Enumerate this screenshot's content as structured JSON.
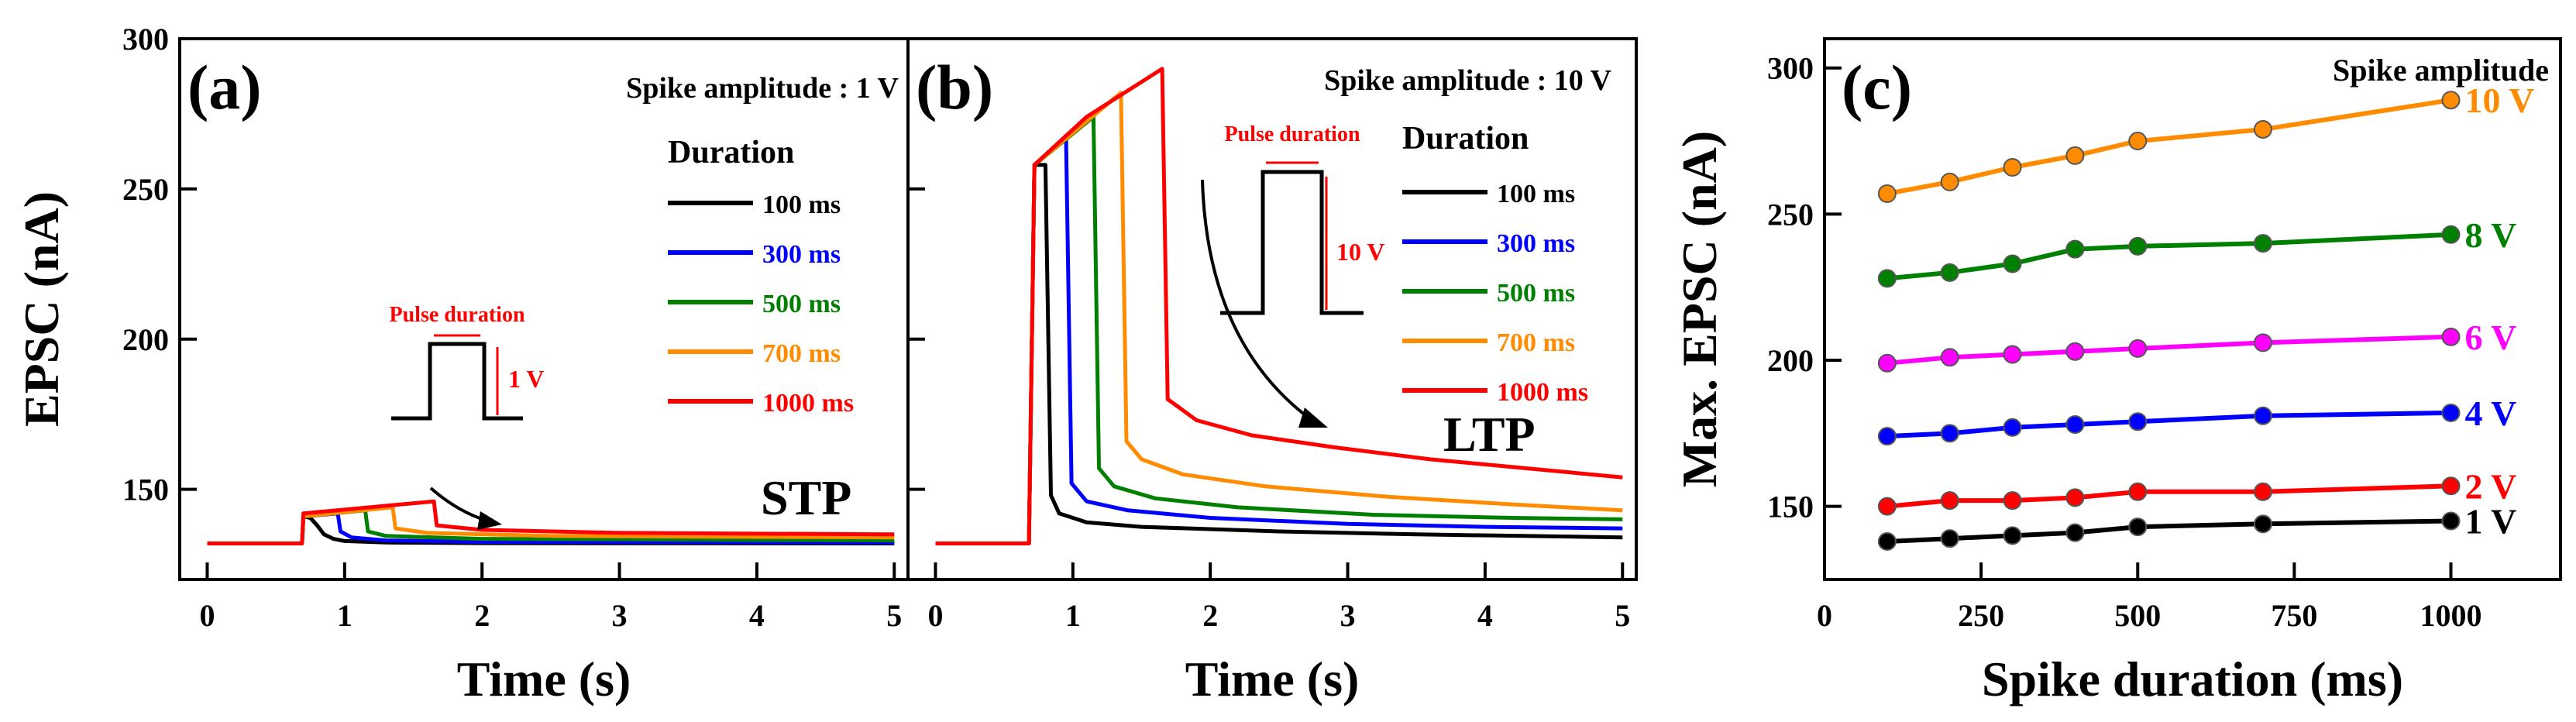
{
  "chart_data": [
    {
      "type": "line",
      "panel": "(a)",
      "xlabel": "Time (s)",
      "ylabel": "EPSC (nA)",
      "xlim": [
        -0.2,
        5.1
      ],
      "ylim": [
        120,
        300
      ],
      "xticks": [
        0,
        1,
        2,
        3,
        4,
        5
      ],
      "yticks": [
        150,
        200,
        250,
        300
      ],
      "amplitude_label": "Spike amplitude : 1 V",
      "legend_title": "Duration",
      "annotation": "STP",
      "inset_title": "Pulse duration",
      "inset_voltage": "1 V",
      "series": [
        {
          "name": "100 ms",
          "color": "#000000",
          "points": [
            [
              0,
              132
            ],
            [
              0.69,
              132
            ],
            [
              0.7,
              141
            ],
            [
              0.75,
              140.5
            ],
            [
              0.8,
              138
            ],
            [
              0.85,
              135
            ],
            [
              0.92,
              133.5
            ],
            [
              1.0,
              132.8
            ],
            [
              1.3,
              132.3
            ],
            [
              2,
              132.1
            ],
            [
              5,
              132
            ]
          ]
        },
        {
          "name": "300 ms",
          "color": "#0000ff",
          "points": [
            [
              0,
              132
            ],
            [
              0.69,
              132
            ],
            [
              0.7,
              141
            ],
            [
              0.95,
              142
            ],
            [
              0.97,
              136
            ],
            [
              1.05,
              134
            ],
            [
              1.3,
              133
            ],
            [
              2,
              132.5
            ],
            [
              5,
              132.3
            ]
          ]
        },
        {
          "name": "500 ms",
          "color": "#008000",
          "points": [
            [
              0,
              132
            ],
            [
              0.69,
              132
            ],
            [
              0.7,
              141
            ],
            [
              1.15,
              143
            ],
            [
              1.17,
              136
            ],
            [
              1.3,
              134.5
            ],
            [
              2,
              133.5
            ],
            [
              5,
              133
            ]
          ]
        },
        {
          "name": "700 ms",
          "color": "#ff8c00",
          "points": [
            [
              0,
              132
            ],
            [
              0.69,
              132
            ],
            [
              0.7,
              141
            ],
            [
              1.35,
              144
            ],
            [
              1.37,
              137
            ],
            [
              1.6,
              135.5
            ],
            [
              2.5,
              134.5
            ],
            [
              5,
              134
            ]
          ]
        },
        {
          "name": "1000 ms",
          "color": "#ff0000",
          "points": [
            [
              0,
              132
            ],
            [
              0.69,
              132
            ],
            [
              0.7,
              142
            ],
            [
              1.65,
              146
            ],
            [
              1.67,
              138
            ],
            [
              2,
              136.5
            ],
            [
              3,
              135.5
            ],
            [
              5,
              135
            ]
          ]
        }
      ]
    },
    {
      "type": "line",
      "panel": "(b)",
      "xlabel": "Time (s)",
      "ylabel": "",
      "xlim": [
        -0.2,
        5.1
      ],
      "ylim": [
        120,
        300
      ],
      "xticks": [
        0,
        1,
        2,
        3,
        4,
        5
      ],
      "yticks": [],
      "amplitude_label": "Spike amplitude : 10 V",
      "legend_title": "Duration",
      "annotation": "LTP",
      "inset_title": "Pulse duration",
      "inset_voltage": "10 V",
      "series": [
        {
          "name": "100 ms",
          "color": "#000000",
          "points": [
            [
              0,
              132
            ],
            [
              0.68,
              132
            ],
            [
              0.72,
              258
            ],
            [
              0.8,
              258
            ],
            [
              0.84,
              148
            ],
            [
              0.9,
              142
            ],
            [
              1.1,
              139
            ],
            [
              1.5,
              137.5
            ],
            [
              2.5,
              136
            ],
            [
              3.5,
              135
            ],
            [
              5,
              134
            ]
          ]
        },
        {
          "name": "300 ms",
          "color": "#0000ff",
          "points": [
            [
              0,
              132
            ],
            [
              0.68,
              132
            ],
            [
              0.72,
              258
            ],
            [
              0.95,
              267
            ],
            [
              0.99,
              152
            ],
            [
              1.1,
              146
            ],
            [
              1.4,
              143
            ],
            [
              2,
              140.5
            ],
            [
              3,
              138.5
            ],
            [
              4,
              137.5
            ],
            [
              5,
              137
            ]
          ]
        },
        {
          "name": "500 ms",
          "color": "#008000",
          "points": [
            [
              0,
              132
            ],
            [
              0.68,
              132
            ],
            [
              0.72,
              258
            ],
            [
              1.15,
              274
            ],
            [
              1.19,
              157
            ],
            [
              1.3,
              151
            ],
            [
              1.6,
              147
            ],
            [
              2.2,
              144
            ],
            [
              3.2,
              141.5
            ],
            [
              4.2,
              140.5
            ],
            [
              5,
              140
            ]
          ]
        },
        {
          "name": "700 ms",
          "color": "#ff8c00",
          "points": [
            [
              0,
              132
            ],
            [
              0.68,
              132
            ],
            [
              0.72,
              258
            ],
            [
              1.35,
              282
            ],
            [
              1.39,
              166
            ],
            [
              1.5,
              160
            ],
            [
              1.8,
              155
            ],
            [
              2.4,
              151
            ],
            [
              3.3,
              147.5
            ],
            [
              4.2,
              145
            ],
            [
              5,
              143
            ]
          ]
        },
        {
          "name": "1000 ms",
          "color": "#ff0000",
          "points": [
            [
              0,
              132
            ],
            [
              0.68,
              132
            ],
            [
              0.72,
              258
            ],
            [
              1.1,
              274
            ],
            [
              1.65,
              290
            ],
            [
              1.69,
              180
            ],
            [
              1.9,
              173
            ],
            [
              2.3,
              168
            ],
            [
              2.9,
              164
            ],
            [
              3.6,
              160
            ],
            [
              4.3,
              157
            ],
            [
              5,
              154
            ]
          ]
        }
      ]
    },
    {
      "type": "line",
      "panel": "(c)",
      "xlabel": "Spike duration (ms)",
      "ylabel": "Max. EPSC (nA)",
      "xlim": [
        0,
        1175
      ],
      "ylim": [
        125,
        310
      ],
      "xticks": [
        0,
        250,
        500,
        750,
        1000
      ],
      "yticks": [
        150,
        200,
        250,
        300
      ],
      "legend_title": "Spike amplitude",
      "x": [
        100,
        200,
        300,
        400,
        500,
        700,
        1000
      ],
      "series": [
        {
          "name": "10 V",
          "color": "#ff8c00",
          "values": [
            257,
            261,
            266,
            270,
            275,
            279,
            289
          ]
        },
        {
          "name": "8 V",
          "color": "#008000",
          "values": [
            228,
            230,
            233,
            238,
            239,
            240,
            243
          ]
        },
        {
          "name": "6 V",
          "color": "#ff00ff",
          "values": [
            199,
            201,
            202,
            203,
            204,
            206,
            208
          ]
        },
        {
          "name": "4 V",
          "color": "#0000ff",
          "values": [
            174,
            175,
            177,
            178,
            179,
            181,
            182
          ]
        },
        {
          "name": "2 V",
          "color": "#ff0000",
          "values": [
            150,
            152,
            152,
            153,
            155,
            155,
            157
          ]
        },
        {
          "name": "1 V",
          "color": "#000000",
          "values": [
            138,
            139,
            140,
            141,
            143,
            144,
            145
          ]
        }
      ]
    }
  ]
}
